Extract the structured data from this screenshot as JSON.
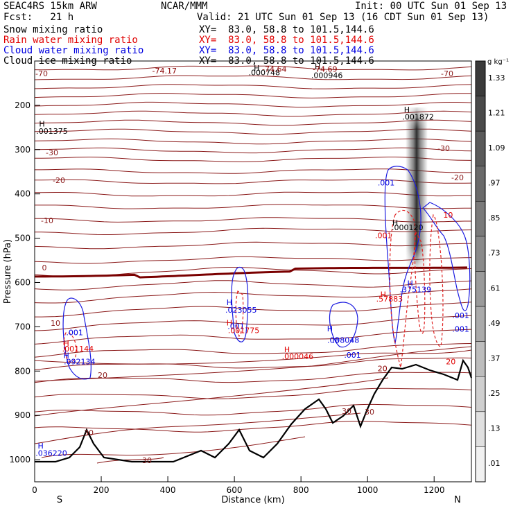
{
  "header": {
    "model": "SEAC4RS 15km ARW",
    "org": "NCAR/MMM",
    "init": "Init: 00 UTC Sun 01 Sep 13",
    "fcst": "Fcst:   21 h",
    "valid": "Valid: 21 UTC Sun 01 Sep 13 (16 CDT Sun 01 Sep 13)",
    "fields": [
      {
        "name": "Snow mixing ratio",
        "xy": "XY=  83.0, 58.8 to 101.5,144.6",
        "color": "#000000"
      },
      {
        "name": "Rain water mixing ratio",
        "xy": "XY=  83.0, 58.8 to 101.5,144.6",
        "color": "#e00000"
      },
      {
        "name": "Cloud water mixing ratio",
        "xy": "XY=  83.0, 58.8 to 101.5,144.6",
        "color": "#0000e0"
      },
      {
        "name": "Cloud ice mixing ratio",
        "xy": "XY=  83.0, 58.8 to 101.5,144.6",
        "color": "#000000"
      }
    ]
  },
  "chart_data": {
    "type": "cross-section",
    "xlabel": "Distance (km)",
    "ylabel": "Pressure (hPa)",
    "xlim": [
      0,
      1312
    ],
    "ylim": [
      1050,
      100
    ],
    "x_ticks": [
      0,
      200,
      400,
      600,
      800,
      1000,
      1200
    ],
    "y_ticks": [
      200,
      300,
      400,
      500,
      600,
      700,
      800,
      900,
      1000
    ],
    "endpoints": {
      "left": "S",
      "right": "N"
    },
    "temperature_isotherm_labels": [
      "-70",
      "-30",
      "-20",
      "-10",
      "0",
      "10",
      "20",
      "30"
    ],
    "colorbar": {
      "unit": "g kg⁻¹",
      "levels": [
        "1.33",
        "1.21",
        "1.09",
        ".97",
        ".85",
        ".73",
        ".61",
        ".49",
        ".37",
        ".25",
        ".13",
        ".01"
      ]
    },
    "annotations": [
      {
        "text": "-74.17",
        "x": 390,
        "p": 128,
        "color": "#8b0000"
      },
      {
        "text": "H",
        "x": 667,
        "p": 122,
        "color": "#000000"
      },
      {
        "text": ".000748",
        "x": 690,
        "p": 132,
        "color": "#000000"
      },
      {
        "text": "-74.64",
        "x": 720,
        "p": 124,
        "color": "#8b0000"
      },
      {
        "text": "H",
        "x": 850,
        "p": 118,
        "color": "#000000"
      },
      {
        "text": "-74.69",
        "x": 872,
        "p": 124,
        "color": "#8b0000"
      },
      {
        "text": ".000946",
        "x": 878,
        "p": 138,
        "color": "#000000"
      },
      {
        "text": "H",
        "x": 22,
        "p": 248,
        "color": "#000000"
      },
      {
        "text": ".001375",
        "x": 52,
        "p": 264,
        "color": "#000000"
      },
      {
        "text": "H",
        "x": 1118,
        "p": 216,
        "color": "#000000"
      },
      {
        "text": ".001872",
        "x": 1152,
        "p": 232,
        "color": "#000000"
      },
      {
        "text": ".001",
        "x": 1056,
        "p": 381,
        "color": "#0000e0"
      },
      {
        "text": "H",
        "x": 1083,
        "p": 472,
        "color": "#000000"
      },
      {
        "text": ".000120",
        "x": 1120,
        "p": 482,
        "color": "#000000"
      },
      {
        "text": ".001",
        "x": 1048,
        "p": 500,
        "color": "#e00000"
      },
      {
        "text": "10",
        "x": 1242,
        "p": 454,
        "color": "#e00000"
      },
      {
        "text": "H",
        "x": 1128,
        "p": 608,
        "color": "#0000e0"
      },
      {
        "text": ".375139",
        "x": 1144,
        "p": 622,
        "color": "#0000e0"
      },
      {
        "text": "H",
        "x": 1047,
        "p": 633,
        "color": "#e00000"
      },
      {
        "text": ".57883",
        "x": 1066,
        "p": 643,
        "color": "#e00000"
      },
      {
        "text": ".001",
        "x": 1280,
        "p": 681,
        "color": "#0000e0"
      },
      {
        "text": ".001",
        "x": 1280,
        "p": 711,
        "color": "#0000e0"
      },
      {
        "text": "H",
        "x": 585,
        "p": 651,
        "color": "#0000e0"
      },
      {
        "text": ".023055",
        "x": 620,
        "p": 668,
        "color": "#0000e0"
      },
      {
        "text": "H",
        "x": 585,
        "p": 697,
        "color": "#e00000"
      },
      {
        "text": ".001",
        "x": 605,
        "p": 705,
        "color": "#0000e0"
      },
      {
        "text": ".001775",
        "x": 628,
        "p": 714,
        "color": "#e00000"
      },
      {
        "text": "H",
        "x": 887,
        "p": 710,
        "color": "#0000e0"
      },
      {
        "text": ".08",
        "x": 897,
        "p": 736,
        "color": "#0000e0"
      },
      {
        "text": ".08048",
        "x": 935,
        "p": 736,
        "color": "#0000e0"
      },
      {
        "text": ".001",
        "x": 955,
        "p": 770,
        "color": "#0000e0"
      },
      {
        "text": "H",
        "x": 758,
        "p": 757,
        "color": "#e00000"
      },
      {
        "text": ".000046",
        "x": 790,
        "p": 773,
        "color": "#e00000"
      },
      {
        "text": "H",
        "x": 95,
        "p": 743,
        "color": "#e00000"
      },
      {
        "text": ".001144",
        "x": 130,
        "p": 756,
        "color": "#e00000"
      },
      {
        "text": ".001",
        "x": 120,
        "p": 719,
        "color": "#0000e0"
      },
      {
        "text": "H",
        "x": 95,
        "p": 771,
        "color": "#0000e0"
      },
      {
        "text": ".092134",
        "x": 135,
        "p": 785,
        "color": "#0000e0"
      },
      {
        "text": "20",
        "x": 1045,
        "p": 800,
        "color": "#8b0000"
      },
      {
        "text": "20",
        "x": 1250,
        "p": 785,
        "color": "#e00000"
      },
      {
        "text": "H",
        "x": 18,
        "p": 975,
        "color": "#0000e0"
      },
      {
        "text": ".036220",
        "x": 50,
        "p": 991,
        "color": "#0000e0"
      }
    ]
  }
}
